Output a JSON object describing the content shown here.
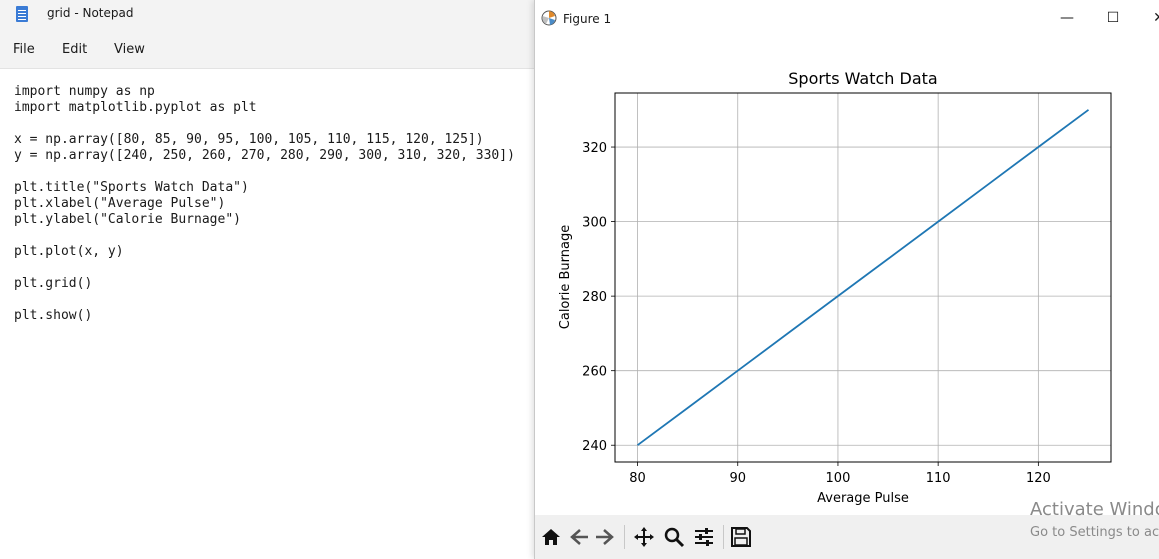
{
  "notepad": {
    "window_title": "grid - Notepad",
    "menu": [
      "File",
      "Edit",
      "View"
    ],
    "code_lines": [
      "import numpy as np",
      "import matplotlib.pyplot as plt",
      "",
      "x = np.array([80, 85, 90, 95, 100, 105, 110, 115, 120, 125])",
      "y = np.array([240, 250, 260, 270, 280, 290, 300, 310, 320, 330])",
      "",
      "plt.title(\"Sports Watch Data\")",
      "plt.xlabel(\"Average Pulse\")",
      "plt.ylabel(\"Calorie Burnage\")",
      "",
      "plt.plot(x, y)",
      "",
      "plt.grid()",
      "",
      "plt.show()"
    ]
  },
  "figure_window": {
    "title": "Figure 1",
    "minimize_glyph": "—",
    "maximize_glyph": "☐",
    "close_glyph": "✕",
    "toolbar": [
      {
        "name": "home-icon"
      },
      {
        "name": "back-arrow-icon"
      },
      {
        "name": "forward-arrow-icon"
      },
      {
        "name": "pan-icon"
      },
      {
        "name": "zoom-icon"
      },
      {
        "name": "configure-subplots-icon"
      },
      {
        "name": "save-icon"
      }
    ]
  },
  "chart_data": {
    "type": "line",
    "title": "Sports Watch Data",
    "xlabel": "Average Pulse",
    "ylabel": "Calorie Burnage",
    "x": [
      80,
      85,
      90,
      95,
      100,
      105,
      110,
      115,
      120,
      125
    ],
    "series": [
      {
        "values": [
          240,
          250,
          260,
          270,
          280,
          290,
          300,
          310,
          320,
          330
        ],
        "color": "#1f77b4"
      }
    ],
    "xlim": [
      77.75,
      127.25
    ],
    "ylim": [
      235.5,
      334.5
    ],
    "xticks": [
      80,
      90,
      100,
      110,
      120
    ],
    "yticks": [
      240,
      260,
      280,
      300,
      320
    ],
    "grid": true
  },
  "watermark": {
    "title": "Activate Windows",
    "subtitle": "Go to Settings to activate Windows."
  }
}
